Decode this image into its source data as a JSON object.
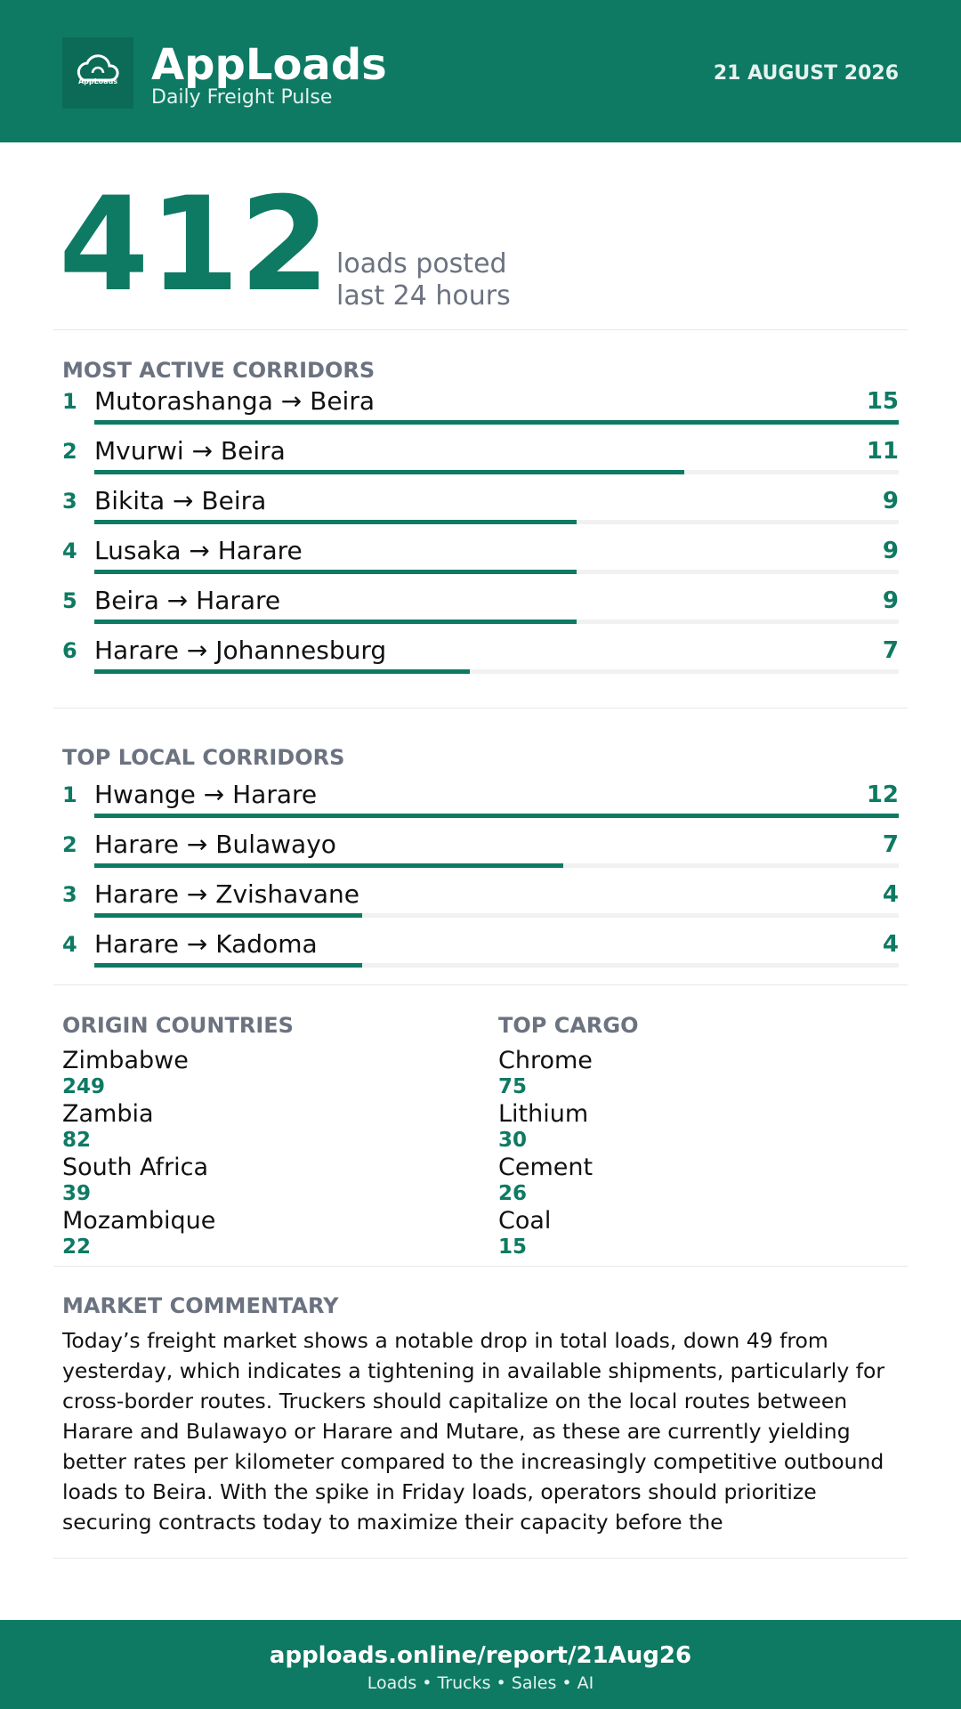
{
  "header": {
    "logo_text": "AppLoads",
    "title": "AppLoads",
    "subtitle": "Daily Freight Pulse",
    "date": "21 AUGUST 2026"
  },
  "headline": {
    "value": 412,
    "label_line1": "loads posted",
    "label_line2": "last 24 hours"
  },
  "most_active_corridors": {
    "title": "MOST ACTIVE CORRIDORS",
    "rows": [
      {
        "rank": 1,
        "route": "Mutorashanga → Beira",
        "loads": 15
      },
      {
        "rank": 2,
        "route": "Mvurwi → Beira",
        "loads": 11
      },
      {
        "rank": 3,
        "route": "Bikita → Beira",
        "loads": 9
      },
      {
        "rank": 4,
        "route": "Lusaka → Harare",
        "loads": 9
      },
      {
        "rank": 5,
        "route": "Beira → Harare",
        "loads": 9
      },
      {
        "rank": 6,
        "route": "Harare → Johannesburg",
        "loads": 7
      }
    ]
  },
  "top_local_corridors": {
    "title": "TOP LOCAL CORRIDORS",
    "rows": [
      {
        "rank": 1,
        "route": "Hwange → Harare",
        "loads": 12
      },
      {
        "rank": 2,
        "route": "Harare → Bulawayo",
        "loads": 7
      },
      {
        "rank": 3,
        "route": "Harare → Zvishavane",
        "loads": 4
      },
      {
        "rank": 4,
        "route": "Harare → Kadoma",
        "loads": 4
      }
    ]
  },
  "origin_countries": {
    "title": "ORIGIN COUNTRIES",
    "items": [
      {
        "name": "Zimbabwe",
        "loads": 249
      },
      {
        "name": "Zambia",
        "loads": 82
      },
      {
        "name": "South Africa",
        "loads": 39
      },
      {
        "name": "Mozambique",
        "loads": 22
      }
    ]
  },
  "top_cargo": {
    "title": "TOP CARGO",
    "items": [
      {
        "name": "Chrome",
        "loads": 75
      },
      {
        "name": "Lithium",
        "loads": 30
      },
      {
        "name": "Cement",
        "loads": 26
      },
      {
        "name": "Coal",
        "loads": 15
      }
    ]
  },
  "market_commentary": {
    "title": "MARKET COMMENTARY",
    "text": "Today’s freight market shows a notable drop in total loads, down 49 from yesterday, which indicates a tightening in available shipments, particularly for cross-border routes. Truckers should capitalize on the local routes between Harare and Bulawayo or Harare and Mutare, as these are currently yielding better rates per kilometer compared to the increasingly competitive outbound loads to Beira. With the spike in Friday loads, operators should prioritize securing contracts today to maximize their capacity before the"
  },
  "footer": {
    "url": "apploads.online/report/21Aug26",
    "tagline": "Loads • Trucks • Sales • AI"
  }
}
